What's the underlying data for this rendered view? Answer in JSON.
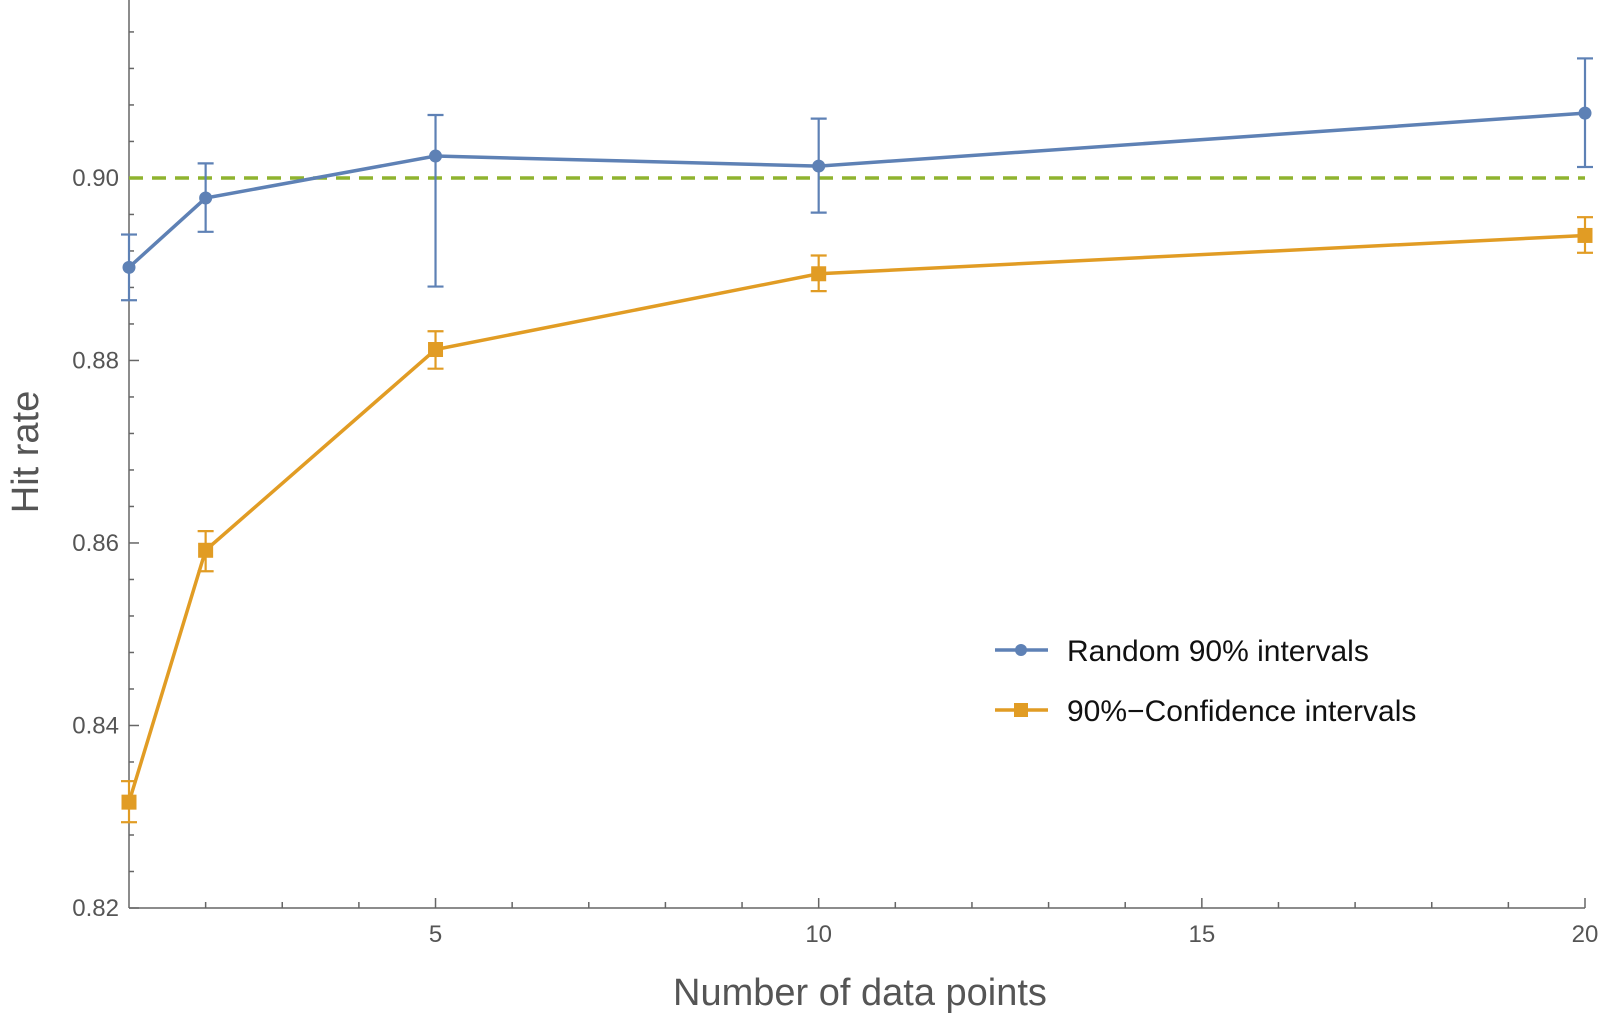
{
  "chart_data": {
    "type": "line",
    "title": "",
    "xlabel": "Number of data points",
    "ylabel": "Hit rate",
    "xlim": [
      1,
      20
    ],
    "ylim": [
      0.82,
      0.9195
    ],
    "x_ticks": [
      5,
      10,
      15,
      20
    ],
    "y_ticks": [
      0.82,
      0.84,
      0.86,
      0.88,
      0.9
    ],
    "y_tick_labels": [
      "0.82",
      "0.84",
      "0.86",
      "0.88",
      "0.90"
    ],
    "x_tick_labels": [
      "5",
      "10",
      "15",
      "20"
    ],
    "grid": false,
    "legend_position": "bottom-right",
    "reference_line": {
      "y": 0.9,
      "style": "dashed",
      "color": "#8fb32f"
    },
    "series": [
      {
        "name": "Random 90% intervals",
        "color": "#5e81b5",
        "marker": "circle",
        "x": [
          1,
          2,
          5,
          10,
          20
        ],
        "y": [
          0.8902,
          0.8978,
          0.9024,
          0.9013,
          0.9071
        ],
        "err_low": [
          0.8866,
          0.8941,
          0.8881,
          0.8962,
          0.9012
        ],
        "err_high": [
          0.8938,
          0.9016,
          0.9069,
          0.9065,
          0.9131
        ]
      },
      {
        "name": "90%−Confidence intervals",
        "color": "#e19c24",
        "marker": "square",
        "x": [
          1,
          2,
          5,
          10,
          20
        ],
        "y": [
          0.8316,
          0.8592,
          0.8812,
          0.8895,
          0.8937
        ],
        "err_low": [
          0.8294,
          0.8569,
          0.8791,
          0.8876,
          0.8918
        ],
        "err_high": [
          0.8339,
          0.8613,
          0.8832,
          0.8915,
          0.8957
        ]
      }
    ]
  }
}
